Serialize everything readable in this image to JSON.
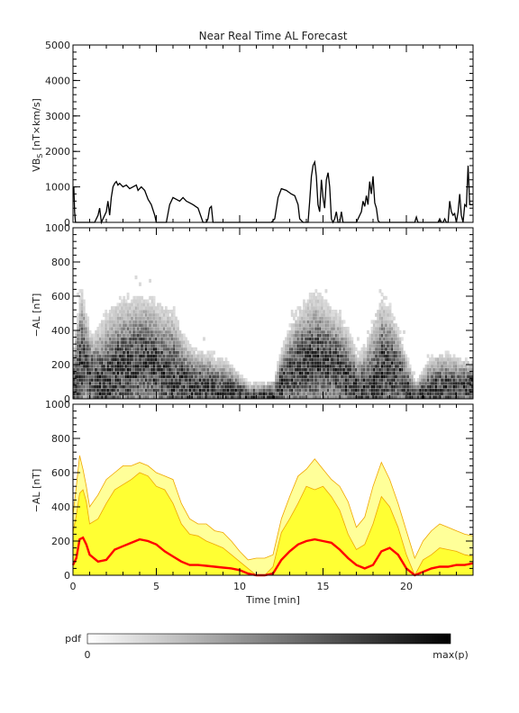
{
  "title": "Near Real Time AL Forecast",
  "colors": {
    "line": "#000000",
    "band_outline": "#f0a500",
    "band_fill": "#ffff33",
    "band_light": "#ffff99",
    "median": "#ff0000",
    "pdf_min": "#ffffff",
    "pdf_max": "#000000"
  },
  "colorbar": {
    "label": "pdf",
    "min_label": "0",
    "max_label": "max(p)"
  },
  "chart_data": [
    {
      "type": "line",
      "name": "vbs-panel",
      "title": "Near Real Time AL Forecast",
      "ylabel": "VB_s [nT×km/s]",
      "ylabel_main": "VB",
      "ylabel_sub": "S",
      "ylabel_rest": " [nT×km/s]",
      "xlabel": "",
      "xlim": [
        0,
        24
      ],
      "ylim": [
        0,
        5000
      ],
      "y_ticks": [
        "0",
        "1000",
        "2000",
        "3000",
        "4000",
        "5000"
      ],
      "series": [
        {
          "x": [
            0,
            0.05,
            0.1,
            0.15,
            0.3,
            1.0,
            1.3,
            1.5,
            1.6,
            1.7,
            2.0,
            2.1,
            2.2,
            2.3,
            2.4,
            2.5,
            2.6,
            2.7,
            2.8,
            3.0,
            3.2,
            3.4,
            3.6,
            3.8,
            3.9,
            4.0,
            4.1,
            4.2,
            4.3,
            4.5,
            4.7,
            4.9,
            5.0,
            5.2,
            5.4,
            5.6,
            5.8,
            6.0,
            6.2,
            6.4,
            6.6,
            6.8,
            7.0,
            7.2,
            7.5,
            7.8,
            8.0,
            8.1,
            8.2,
            8.3,
            8.4,
            9.0,
            10.0,
            11.0,
            11.9,
            12.1,
            12.3,
            12.5,
            12.8,
            13.1,
            13.3,
            13.5,
            13.6,
            13.8,
            14.0,
            14.1,
            14.2,
            14.3,
            14.4,
            14.5,
            14.6,
            14.7,
            14.8,
            14.9,
            15.0,
            15.1,
            15.2,
            15.3,
            15.4,
            15.5,
            15.6,
            15.7,
            15.8,
            15.9,
            16.0,
            16.1,
            16.2,
            17.0,
            17.3,
            17.4,
            17.5,
            17.6,
            17.7,
            17.8,
            17.9,
            18.0,
            18.1,
            18.2,
            18.3,
            18.4,
            18.5,
            19.0,
            20.0,
            20.5,
            20.6,
            20.7,
            20.8,
            21.0,
            21.2,
            21.5,
            21.7,
            21.9,
            22.0,
            22.1,
            22.2,
            22.3,
            22.4,
            22.5,
            22.6,
            22.7,
            22.8,
            22.9,
            23.0,
            23.1,
            23.2,
            23.3,
            23.4,
            23.5,
            23.6,
            23.7,
            23.8,
            24.0
          ],
          "y": [
            950,
            1000,
            300,
            0,
            0,
            0,
            0,
            200,
            400,
            0,
            300,
            600,
            200,
            700,
            1000,
            1100,
            1150,
            1050,
            1100,
            1000,
            1050,
            950,
            1000,
            1050,
            900,
            950,
            1000,
            950,
            900,
            650,
            500,
            200,
            0,
            0,
            0,
            0,
            500,
            700,
            650,
            600,
            700,
            600,
            550,
            500,
            400,
            0,
            0,
            100,
            400,
            450,
            0,
            0,
            0,
            0,
            0,
            100,
            700,
            950,
            900,
            800,
            750,
            500,
            100,
            0,
            0,
            0,
            600,
            1300,
            1600,
            1700,
            1300,
            500,
            300,
            1200,
            700,
            400,
            1200,
            1400,
            1000,
            100,
            0,
            100,
            300,
            0,
            0,
            300,
            0,
            0,
            300,
            600,
            450,
            750,
            500,
            1150,
            800,
            1300,
            550,
            400,
            50,
            0,
            0,
            0,
            0,
            0,
            150,
            0,
            0,
            0,
            0,
            0,
            0,
            0,
            100,
            0,
            0,
            100,
            0,
            0,
            600,
            300,
            200,
            250,
            0,
            300,
            800,
            200,
            0,
            500,
            450,
            1600,
            500,
            500
          ]
        }
      ]
    },
    {
      "type": "heatmap",
      "name": "pdf-panel",
      "ylabel": "−AL [nT]",
      "xlim": [
        0,
        24
      ],
      "ylim": [
        0,
        1000
      ],
      "y_ticks": [
        "0",
        "200",
        "400",
        "600",
        "800",
        "1000"
      ],
      "note": "probability density of −AL per time bin (grayscale, white = 0, black = max(p))"
    },
    {
      "type": "area",
      "name": "forecast-panel",
      "ylabel": "−AL [nT]",
      "xlabel": "Time [min]",
      "xlim": [
        0,
        24
      ],
      "ylim": [
        0,
        1000
      ],
      "y_ticks": [
        "0",
        "200",
        "400",
        "600",
        "800",
        "1000"
      ],
      "x_ticks": [
        "0",
        "5",
        "10",
        "15",
        "20"
      ],
      "x": [
        0,
        0.2,
        0.4,
        0.6,
        0.8,
        1.0,
        1.5,
        2.0,
        2.5,
        3.0,
        3.5,
        4.0,
        4.5,
        5.0,
        5.5,
        6.0,
        6.5,
        7.0,
        7.5,
        8.0,
        8.5,
        9.0,
        9.5,
        10.0,
        10.5,
        11.0,
        11.5,
        12.0,
        12.5,
        13.0,
        13.5,
        14.0,
        14.5,
        15.0,
        15.5,
        16.0,
        16.5,
        17.0,
        17.5,
        18.0,
        18.5,
        19.0,
        19.5,
        20.0,
        20.5,
        21.0,
        21.5,
        22.0,
        22.5,
        23.0,
        23.5,
        24.0
      ],
      "series": [
        {
          "name": "median",
          "values": [
            60,
            100,
            210,
            220,
            180,
            120,
            80,
            90,
            150,
            170,
            190,
            210,
            200,
            180,
            140,
            110,
            80,
            60,
            60,
            55,
            50,
            45,
            40,
            30,
            10,
            0,
            0,
            10,
            90,
            140,
            180,
            200,
            210,
            200,
            190,
            150,
            100,
            60,
            40,
            60,
            140,
            160,
            120,
            40,
            0,
            20,
            40,
            50,
            50,
            60,
            60,
            70
          ]
        },
        {
          "name": "inner_upper",
          "values": [
            250,
            350,
            480,
            500,
            430,
            300,
            330,
            420,
            500,
            530,
            560,
            600,
            580,
            520,
            500,
            420,
            300,
            240,
            230,
            200,
            180,
            160,
            120,
            80,
            40,
            0,
            0,
            50,
            250,
            330,
            420,
            520,
            500,
            520,
            460,
            380,
            240,
            150,
            180,
            300,
            460,
            400,
            280,
            120,
            0,
            90,
            120,
            160,
            150,
            140,
            120,
            110
          ]
        },
        {
          "name": "outer_upper",
          "values": [
            350,
            520,
            700,
            620,
            520,
            400,
            470,
            560,
            600,
            640,
            640,
            660,
            640,
            600,
            580,
            560,
            420,
            330,
            300,
            300,
            260,
            250,
            200,
            140,
            90,
            100,
            100,
            120,
            330,
            460,
            580,
            620,
            680,
            620,
            560,
            520,
            430,
            280,
            340,
            520,
            660,
            560,
            420,
            260,
            100,
            200,
            260,
            300,
            280,
            260,
            240,
            230
          ]
        }
      ]
    }
  ]
}
